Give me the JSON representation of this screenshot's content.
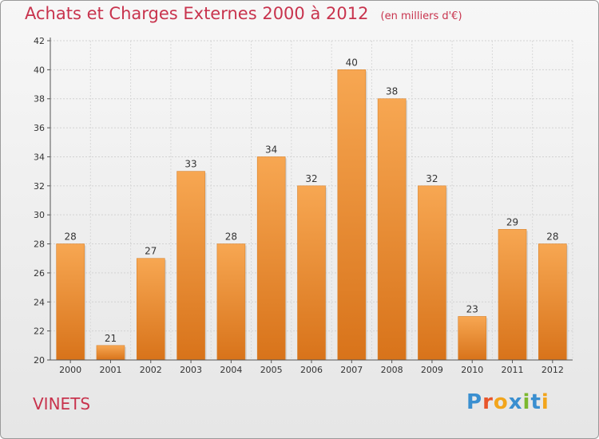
{
  "header": {
    "title": "Achats et Charges Externes 2000 à 2012",
    "subtitle": "(en milliers d'€)"
  },
  "footer": {
    "place": "VINETS",
    "logo_text": "Proxiti",
    "logo_colors": [
      "#3a8fd0",
      "#e8552a",
      "#f2a51c",
      "#3a8fd0",
      "#7cb82f",
      "#3a8fd0",
      "#f2a51c"
    ]
  },
  "chart_data": {
    "type": "bar",
    "categories": [
      "2000",
      "2001",
      "2002",
      "2003",
      "2004",
      "2005",
      "2006",
      "2007",
      "2008",
      "2009",
      "2010",
      "2011",
      "2012"
    ],
    "values": [
      28,
      21,
      27,
      33,
      28,
      34,
      32,
      40,
      38,
      32,
      23,
      29,
      28
    ],
    "ylim": [
      20,
      42
    ],
    "yticks": [
      20,
      22,
      24,
      26,
      28,
      30,
      32,
      34,
      36,
      38,
      40,
      42
    ],
    "xlabel": "",
    "ylabel": "",
    "grid": true,
    "bar_color": "#f0922f"
  }
}
